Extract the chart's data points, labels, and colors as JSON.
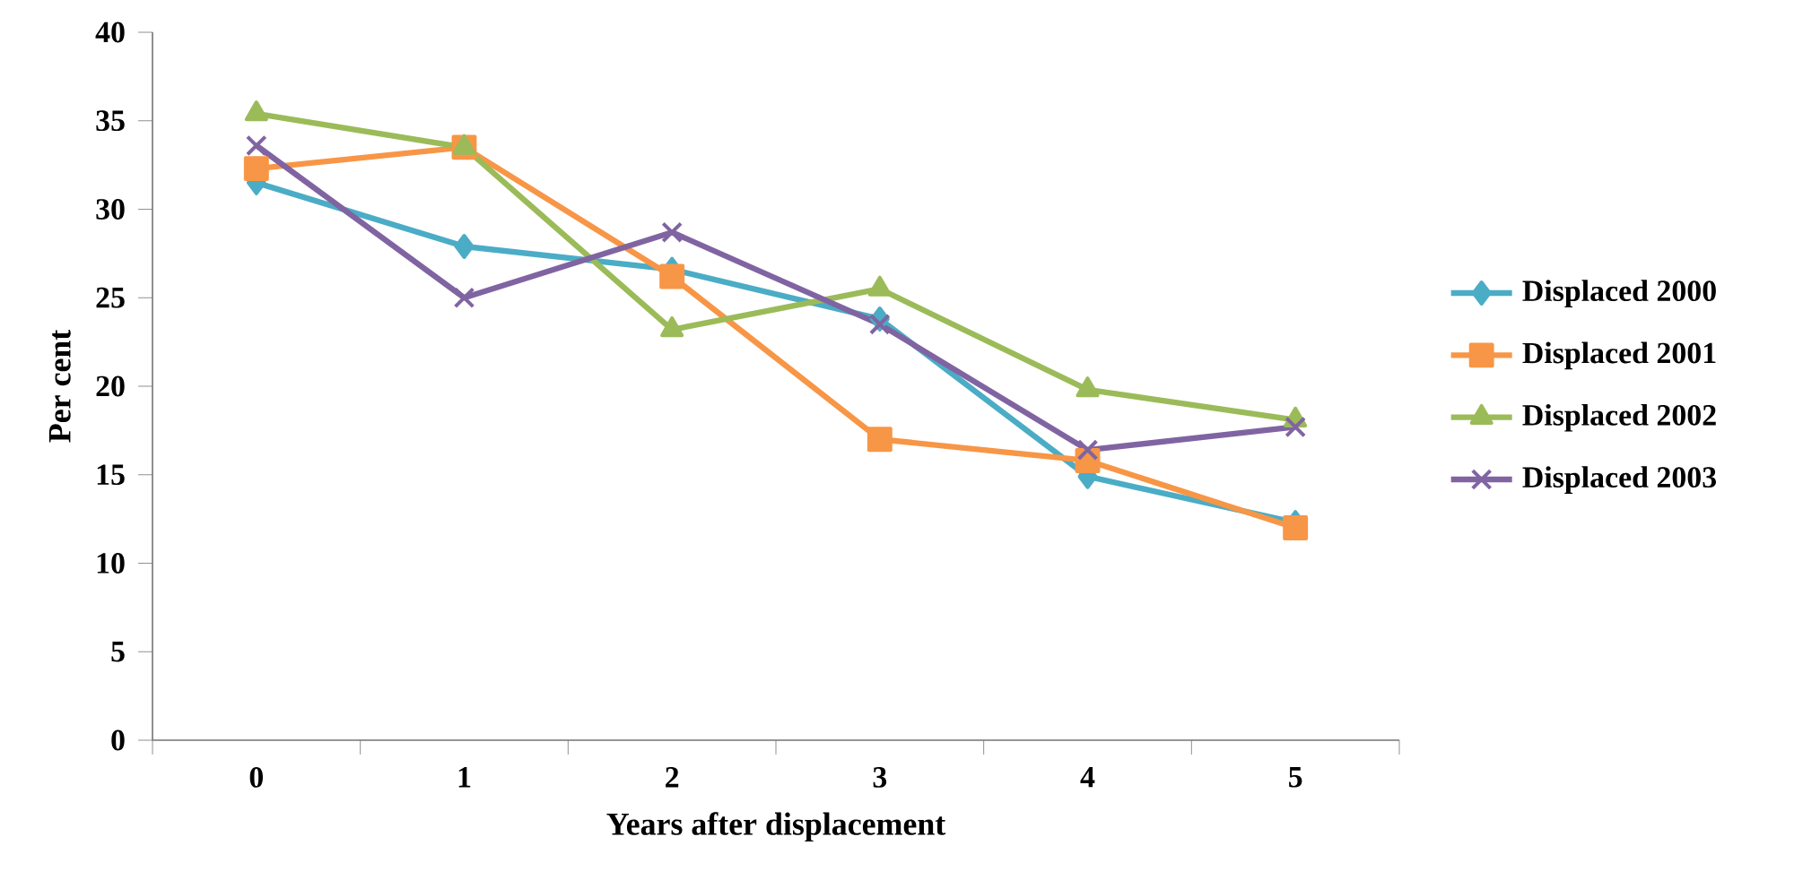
{
  "chart_data": {
    "type": "line",
    "xlabel": "Years after displacement",
    "ylabel": "Per cent",
    "categories": [
      "0",
      "1",
      "2",
      "3",
      "4",
      "5"
    ],
    "ylim": [
      0,
      40
    ],
    "yticks": [
      0,
      5,
      10,
      15,
      20,
      25,
      30,
      35,
      40
    ],
    "legend": "right",
    "series": [
      {
        "name": "Displaced 2000",
        "color": "#4bacc6",
        "marker": "diamond",
        "values": [
          31.5,
          27.9,
          26.6,
          23.8,
          14.9,
          12.3
        ]
      },
      {
        "name": "Displaced 2001",
        "color": "#f79646",
        "marker": "square",
        "values": [
          32.3,
          33.5,
          26.2,
          17.0,
          15.8,
          12.0
        ]
      },
      {
        "name": "Displaced 2002",
        "color": "#9bbb59",
        "marker": "triangle",
        "values": [
          35.4,
          33.5,
          23.2,
          25.5,
          19.8,
          18.1
        ]
      },
      {
        "name": "Displaced 2003",
        "color": "#8064a2",
        "marker": "cross",
        "values": [
          33.6,
          25.0,
          28.7,
          23.5,
          16.4,
          17.7
        ]
      }
    ]
  }
}
